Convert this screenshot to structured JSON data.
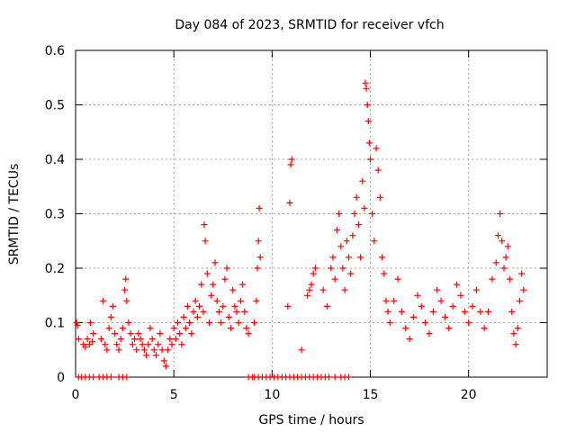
{
  "chart_data": {
    "type": "scatter",
    "title": "Day 084 of 2023, SRMTID for receiver vfch",
    "xlabel": "GPS time / hours",
    "ylabel": "SRMTID / TECUs",
    "xlim": [
      0,
      24
    ],
    "ylim": [
      0,
      0.6
    ],
    "x_ticks": [
      0,
      5,
      10,
      15,
      20
    ],
    "x_tick_labels": [
      "0",
      "5",
      "10",
      "15",
      "20"
    ],
    "y_ticks": [
      0,
      0.1,
      0.2,
      0.3,
      0.4,
      0.5,
      0.6
    ],
    "y_tick_labels": [
      "0",
      "0.1",
      "0.2",
      "0.3",
      "0.4",
      "0.5",
      "0.6"
    ],
    "grid": true,
    "marker": "+",
    "series_color": "#ff0000",
    "series": [
      {
        "name": "SRMTID",
        "points": [
          [
            0.05,
            0.1
          ],
          [
            0.1,
            0.095
          ],
          [
            0.15,
            0.07
          ],
          [
            0.4,
            0.06
          ],
          [
            0.5,
            0.055
          ],
          [
            0.6,
            0.07
          ],
          [
            0.7,
            0.06
          ],
          [
            0.75,
            0.1
          ],
          [
            0.85,
            0.065
          ],
          [
            0.9,
            0.08
          ],
          [
            1.3,
            0.07
          ],
          [
            1.4,
            0.14
          ],
          [
            1.5,
            0.06
          ],
          [
            1.6,
            0.05
          ],
          [
            1.7,
            0.09
          ],
          [
            1.8,
            0.11
          ],
          [
            1.9,
            0.13
          ],
          [
            2.0,
            0.08
          ],
          [
            2.1,
            0.06
          ],
          [
            2.2,
            0.05
          ],
          [
            2.3,
            0.07
          ],
          [
            2.4,
            0.09
          ],
          [
            2.5,
            0.16
          ],
          [
            2.55,
            0.18
          ],
          [
            2.6,
            0.14
          ],
          [
            2.7,
            0.1
          ],
          [
            2.8,
            0.08
          ],
          [
            2.9,
            0.06
          ],
          [
            3.0,
            0.07
          ],
          [
            3.1,
            0.05
          ],
          [
            3.2,
            0.08
          ],
          [
            3.3,
            0.07
          ],
          [
            3.4,
            0.06
          ],
          [
            3.5,
            0.05
          ],
          [
            3.6,
            0.04
          ],
          [
            3.7,
            0.06
          ],
          [
            3.8,
            0.09
          ],
          [
            3.9,
            0.07
          ],
          [
            4.0,
            0.05
          ],
          [
            4.1,
            0.04
          ],
          [
            4.2,
            0.06
          ],
          [
            4.3,
            0.08
          ],
          [
            4.4,
            0.05
          ],
          [
            4.5,
            0.03
          ],
          [
            4.6,
            0.02
          ],
          [
            4.7,
            0.05
          ],
          [
            4.8,
            0.07
          ],
          [
            4.9,
            0.06
          ],
          [
            5.0,
            0.09
          ],
          [
            5.1,
            0.07
          ],
          [
            5.2,
            0.1
          ],
          [
            5.3,
            0.08
          ],
          [
            5.4,
            0.06
          ],
          [
            5.5,
            0.11
          ],
          [
            5.6,
            0.09
          ],
          [
            5.7,
            0.13
          ],
          [
            5.8,
            0.1
          ],
          [
            5.9,
            0.08
          ],
          [
            6.0,
            0.12
          ],
          [
            6.1,
            0.14
          ],
          [
            6.2,
            0.11
          ],
          [
            6.3,
            0.13
          ],
          [
            6.4,
            0.17
          ],
          [
            6.5,
            0.12
          ],
          [
            6.55,
            0.28
          ],
          [
            6.6,
            0.25
          ],
          [
            6.7,
            0.19
          ],
          [
            6.8,
            0.1
          ],
          [
            6.9,
            0.15
          ],
          [
            7.0,
            0.17
          ],
          [
            7.1,
            0.21
          ],
          [
            7.2,
            0.14
          ],
          [
            7.3,
            0.12
          ],
          [
            7.4,
            0.1
          ],
          [
            7.5,
            0.13
          ],
          [
            7.6,
            0.18
          ],
          [
            7.7,
            0.2
          ],
          [
            7.8,
            0.11
          ],
          [
            7.9,
            0.09
          ],
          [
            8.0,
            0.16
          ],
          [
            8.1,
            0.13
          ],
          [
            8.2,
            0.12
          ],
          [
            8.3,
            0.1
          ],
          [
            8.4,
            0.14
          ],
          [
            8.5,
            0.17
          ],
          [
            8.6,
            0.12
          ],
          [
            8.7,
            0.09
          ],
          [
            8.8,
            0.08
          ],
          [
            9.1,
            0.1
          ],
          [
            9.2,
            0.14
          ],
          [
            9.25,
            0.2
          ],
          [
            9.3,
            0.25
          ],
          [
            9.35,
            0.31
          ],
          [
            9.4,
            0.22
          ],
          [
            10.8,
            0.13
          ],
          [
            10.9,
            0.32
          ],
          [
            10.95,
            0.39
          ],
          [
            11.0,
            0.4
          ],
          [
            11.5,
            0.05
          ],
          [
            11.8,
            0.15
          ],
          [
            11.9,
            0.16
          ],
          [
            12.0,
            0.17
          ],
          [
            12.1,
            0.19
          ],
          [
            12.2,
            0.2
          ],
          [
            12.6,
            0.16
          ],
          [
            12.8,
            0.13
          ],
          [
            13.0,
            0.2
          ],
          [
            13.1,
            0.22
          ],
          [
            13.2,
            0.18
          ],
          [
            13.3,
            0.27
          ],
          [
            13.4,
            0.3
          ],
          [
            13.5,
            0.24
          ],
          [
            13.6,
            0.2
          ],
          [
            13.7,
            0.16
          ],
          [
            13.8,
            0.25
          ],
          [
            13.9,
            0.22
          ],
          [
            14.0,
            0.19
          ],
          [
            14.1,
            0.26
          ],
          [
            14.2,
            0.3
          ],
          [
            14.3,
            0.33
          ],
          [
            14.4,
            0.28
          ],
          [
            14.5,
            0.22
          ],
          [
            14.6,
            0.36
          ],
          [
            14.7,
            0.31
          ],
          [
            14.75,
            0.54
          ],
          [
            14.8,
            0.53
          ],
          [
            14.85,
            0.5
          ],
          [
            14.9,
            0.47
          ],
          [
            14.95,
            0.43
          ],
          [
            15.0,
            0.4
          ],
          [
            15.1,
            0.3
          ],
          [
            15.2,
            0.25
          ],
          [
            15.3,
            0.42
          ],
          [
            15.4,
            0.38
          ],
          [
            15.5,
            0.33
          ],
          [
            15.6,
            0.22
          ],
          [
            15.7,
            0.19
          ],
          [
            15.8,
            0.14
          ],
          [
            15.9,
            0.12
          ],
          [
            16.0,
            0.1
          ],
          [
            16.2,
            0.14
          ],
          [
            16.4,
            0.18
          ],
          [
            16.6,
            0.12
          ],
          [
            16.8,
            0.09
          ],
          [
            17.0,
            0.07
          ],
          [
            17.2,
            0.11
          ],
          [
            17.4,
            0.15
          ],
          [
            17.6,
            0.13
          ],
          [
            17.8,
            0.1
          ],
          [
            18.0,
            0.08
          ],
          [
            18.2,
            0.12
          ],
          [
            18.4,
            0.16
          ],
          [
            18.6,
            0.14
          ],
          [
            18.8,
            0.11
          ],
          [
            19.0,
            0.09
          ],
          [
            19.2,
            0.13
          ],
          [
            19.4,
            0.17
          ],
          [
            19.6,
            0.15
          ],
          [
            19.8,
            0.12
          ],
          [
            20.0,
            0.1
          ],
          [
            20.2,
            0.13
          ],
          [
            20.4,
            0.16
          ],
          [
            20.6,
            0.12
          ],
          [
            20.8,
            0.09
          ],
          [
            21.0,
            0.12
          ],
          [
            21.2,
            0.18
          ],
          [
            21.4,
            0.21
          ],
          [
            21.5,
            0.26
          ],
          [
            21.6,
            0.3
          ],
          [
            21.7,
            0.25
          ],
          [
            21.8,
            0.2
          ],
          [
            21.9,
            0.22
          ],
          [
            22.0,
            0.24
          ],
          [
            22.1,
            0.18
          ],
          [
            22.2,
            0.12
          ],
          [
            22.3,
            0.08
          ],
          [
            22.4,
            0.06
          ],
          [
            22.5,
            0.09
          ],
          [
            22.6,
            0.14
          ],
          [
            22.7,
            0.19
          ],
          [
            22.8,
            0.16
          ]
        ],
        "zero_points_x": [
          0.15,
          0.3,
          0.5,
          0.7,
          0.9,
          1.2,
          1.4,
          1.6,
          1.8,
          2.2,
          2.4,
          2.6,
          8.8,
          9.0,
          9.1,
          9.3,
          9.5,
          9.7,
          9.9,
          10.1,
          10.3,
          10.5,
          10.7,
          10.9,
          11.1,
          11.3,
          11.5,
          11.7,
          11.9,
          12.1,
          12.3,
          12.5,
          12.7,
          12.9,
          13.2,
          13.5,
          13.7,
          13.9
        ]
      }
    ]
  }
}
